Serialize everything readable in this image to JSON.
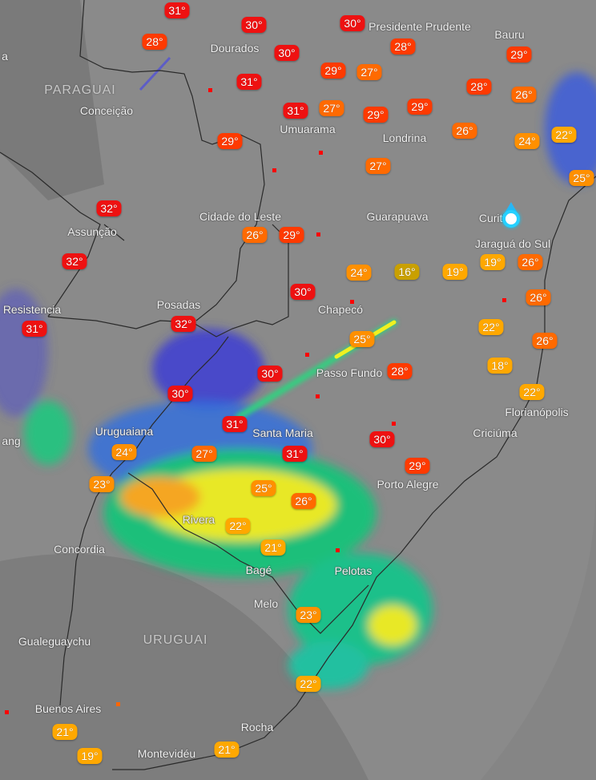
{
  "countries": [
    {
      "label": "PARAGUAI"
    },
    {
      "label": "URUGUAI"
    }
  ],
  "cities": [
    {
      "label": "Dourados"
    },
    {
      "label": "Presidente Prudente"
    },
    {
      "label": "Bauru"
    },
    {
      "label": "Conceição"
    },
    {
      "label": "Umuarama"
    },
    {
      "label": "Londrina"
    },
    {
      "label": "Assunção"
    },
    {
      "label": "Cidade do Leste"
    },
    {
      "label": "Guarapuava"
    },
    {
      "label": "Curitiba"
    },
    {
      "label": "Jaraguá do Sul"
    },
    {
      "label": "Chapecó"
    },
    {
      "label": "Resistencia"
    },
    {
      "label": "Posadas"
    },
    {
      "label": "Florianópolis"
    },
    {
      "label": "Passo Fundo"
    },
    {
      "label": "Criciúma"
    },
    {
      "label": "Santa Maria"
    },
    {
      "label": "Uruguaiana"
    },
    {
      "label": "Porto Alegre"
    },
    {
      "label": "Rivera"
    },
    {
      "label": "Bagé"
    },
    {
      "label": "Concordia"
    },
    {
      "label": "Pelotas"
    },
    {
      "label": "Melo"
    },
    {
      "label": "Gualeguaychu"
    },
    {
      "label": "Buenos Aires"
    },
    {
      "label": "Rocha"
    },
    {
      "label": "Montevidéu"
    },
    {
      "label": "a"
    },
    {
      "label": "ang"
    }
  ],
  "temperatures": [
    "31°",
    "30°",
    "30°",
    "28°",
    "30°",
    "28°",
    "29°",
    "27°",
    "29°",
    "31°",
    "31°",
    "27°",
    "29°",
    "29°",
    "28°",
    "26°",
    "26°",
    "24°",
    "22°",
    "29°",
    "27°",
    "25°",
    "32°",
    "26°",
    "29°",
    "32°",
    "24°",
    "16°",
    "19°",
    "19°",
    "26°",
    "30°",
    "26°",
    "31°",
    "32°",
    "25°",
    "22°",
    "26°",
    "30°",
    "28°",
    "18°",
    "22°",
    "30°",
    "31°",
    "30°",
    "24°",
    "27°",
    "31°",
    "29°",
    "23°",
    "25°",
    "26°",
    "22°",
    "21°",
    "23°",
    "22°",
    "21°",
    "19°",
    "21°"
  ],
  "colors": {
    "hot": "#ee1111",
    "warm": "#ff3a00",
    "mild": "#ff6a00",
    "cool": "#ff9000",
    "cooler": "#ffa800",
    "cold": "#c9a000",
    "location": "#25d0ff"
  },
  "current_location_icon": "location-pin-icon"
}
